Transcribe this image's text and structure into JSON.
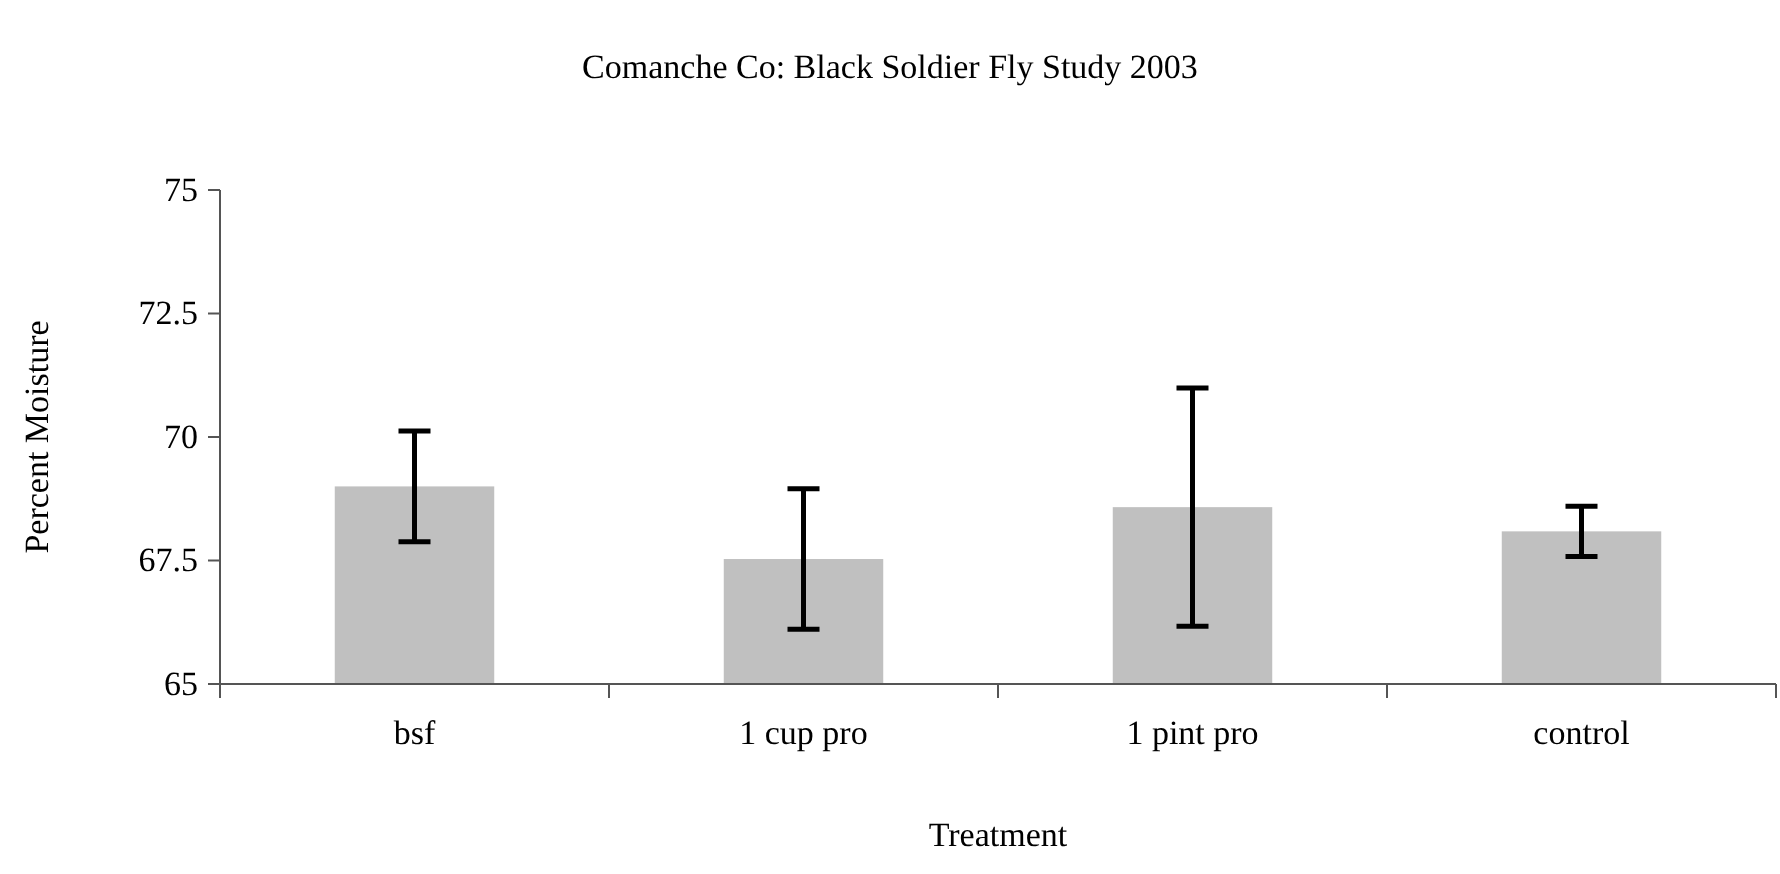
{
  "chart_data": {
    "type": "bar",
    "title": "Comanche Co: Black Soldier Fly Study 2003",
    "xlabel": "Treatment",
    "ylabel": "Percent Moisture",
    "categories": [
      "bsf",
      "1 cup pro",
      "1 pint pro",
      "control"
    ],
    "values": [
      69.0,
      67.53,
      68.58,
      68.09
    ],
    "errors": [
      1.12,
      1.42,
      2.41,
      0.51
    ],
    "color": "#c0c0c0",
    "ylim": [
      65,
      75
    ],
    "yticks": [
      65,
      {
        "value": 67.5,
        "label": "67.5"
      },
      70,
      {
        "value": 72.5,
        "label": "72.5"
      },
      75
    ],
    "grid": false
  }
}
